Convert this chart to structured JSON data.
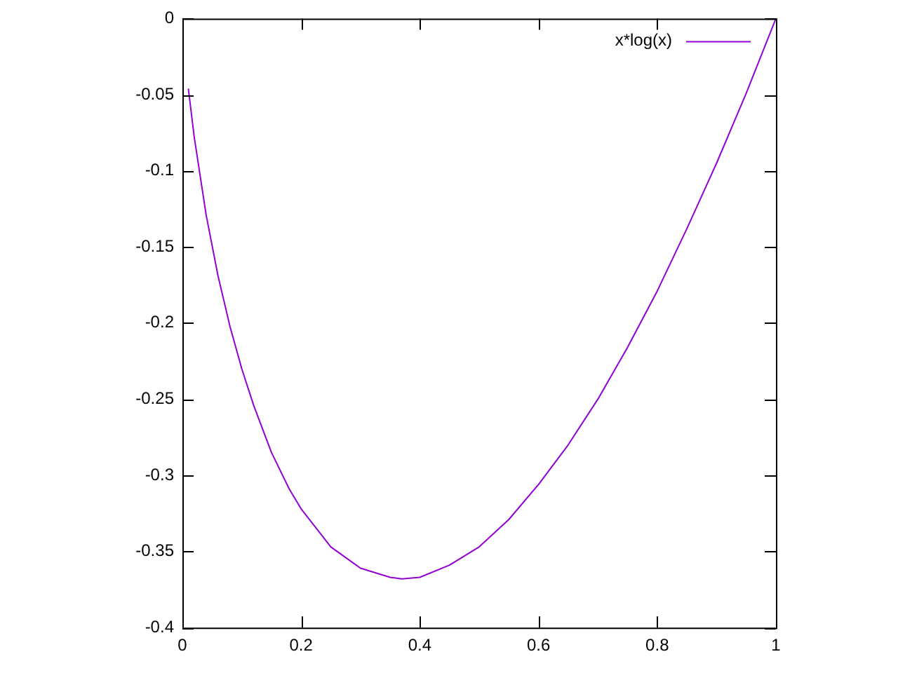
{
  "chart_data": {
    "type": "line",
    "x": [
      0.01,
      0.02,
      0.04,
      0.06,
      0.08,
      0.1,
      0.12,
      0.15,
      0.18,
      0.2,
      0.25,
      0.3,
      0.35,
      0.37,
      0.4,
      0.45,
      0.5,
      0.55,
      0.6,
      0.65,
      0.7,
      0.75,
      0.8,
      0.85,
      0.9,
      0.95,
      1.0
    ],
    "series": [
      {
        "name": "x*log(x)",
        "color": "#9400d3",
        "values": [
          -0.046,
          -0.078,
          -0.129,
          -0.169,
          -0.202,
          -0.23,
          -0.254,
          -0.285,
          -0.309,
          -0.322,
          -0.347,
          -0.361,
          -0.367,
          -0.368,
          -0.367,
          -0.359,
          -0.347,
          -0.329,
          -0.306,
          -0.28,
          -0.25,
          -0.216,
          -0.179,
          -0.138,
          -0.095,
          -0.049,
          0
        ]
      }
    ],
    "xlim": [
      0,
      1
    ],
    "xticks": [
      0,
      0.2,
      0.4,
      0.6,
      0.8,
      1
    ],
    "ylim": [
      -0.4,
      0
    ],
    "yticks": [
      0,
      -0.05,
      -0.1,
      -0.15,
      -0.2,
      -0.25,
      -0.3,
      -0.35,
      -0.4
    ],
    "grid": false,
    "legend": "top right",
    "marker": "none",
    "line_style": "solid"
  }
}
